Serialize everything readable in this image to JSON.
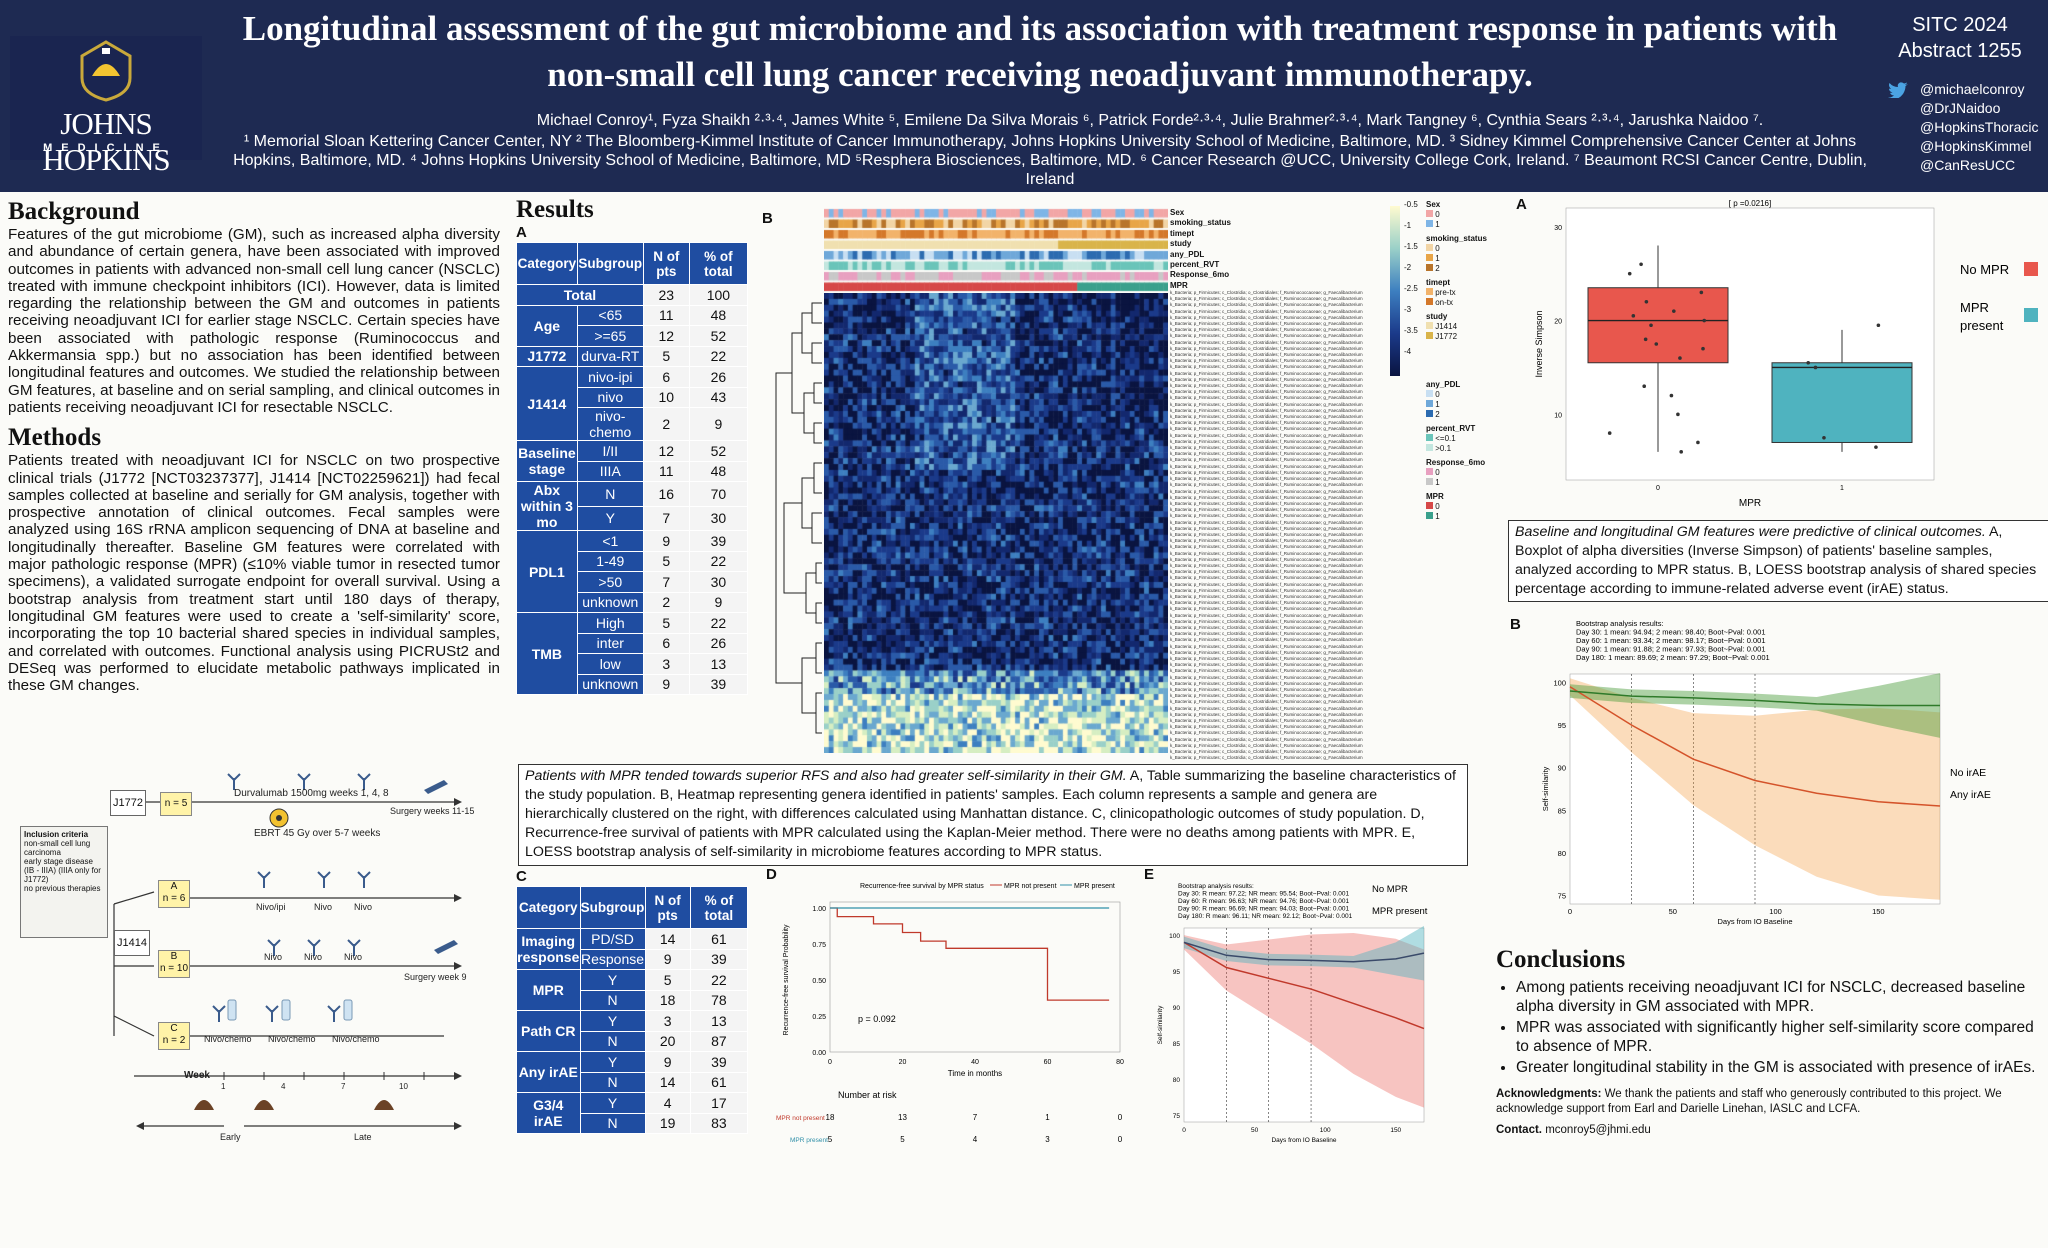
{
  "header": {
    "title": "Longitudinal assessment of the gut microbiome and its association with treatment response in patients with non-small cell lung cancer receiving neoadjuvant immunotherapy.",
    "authors": "Michael Conroy¹, Fyza Shaikh ²·³·⁴, James White ⁵, Emilene Da Silva Morais ⁶, Patrick Forde²·³·⁴, Julie Brahmer²·³·⁴, Mark Tangney ⁶, Cynthia Sears ²·³·⁴, Jarushka Naidoo ⁷.",
    "affil_1": "¹ Memorial Sloan Kettering Cancer Center, NY ² The Bloomberg-Kimmel Institute of Cancer Immunotherapy, Johns Hopkins University School of Medicine, Baltimore, MD. ³ Sidney Kimmel Comprehensive Cancer Center at Johns",
    "affil_2": "Hopkins, Baltimore, MD. ⁴ Johns Hopkins University School of Medicine, Baltimore, MD ⁵Resphera Biosciences, Baltimore, MD. ⁶ Cancer Research @UCC, University College Cork, Ireland. ⁷ Beaumont RCSI Cancer Centre, Dublin, Ireland",
    "conference": "SITC 2024",
    "abstract": "Abstract 1255",
    "logo_text": "JOHNS HOPKINS",
    "logo_sub": "MEDICINE",
    "handles": [
      "@michaelconroy",
      "@DrJNaidoo",
      "@HopkinsThoracic",
      "@HopkinsKimmel",
      "@CanResUCC"
    ]
  },
  "background": {
    "heading": "Background",
    "text": "Features of the gut microbiome (GM), such as increased alpha diversity and abundance of certain genera, have been associated with improved outcomes in patients with advanced non-small cell lung cancer (NSCLC) treated with immune checkpoint inhibitors (ICI). However, data is limited regarding the relationship between the GM and outcomes in patients receiving neoadjuvant ICI for earlier stage NSCLC. Certain species have been associated with pathologic response (Ruminococcus and Akkermansia spp.) but no association has been identified between longitudinal features and outcomes. We studied the relationship between GM features, at baseline and on serial sampling, and clinical outcomes in patients receiving neoadjuvant ICI for resectable NSCLC."
  },
  "methods": {
    "heading": "Methods",
    "text": "Patients treated with neoadjuvant ICI for NSCLC on two prospective clinical trials (J1772 [NCT03237377], J1414 [NCT02259621]) had fecal samples collected at baseline and serially for GM analysis, together with prospective annotation of clinical outcomes. Fecal samples were analyzed using 16S rRNA amplicon sequencing of DNA at baseline and longitudinally thereafter. Baseline GM features were correlated with major pathologic response (MPR) (≤10% viable tumor in resected tumor specimens), a validated surrogate endpoint for overall survival. Using a bootstrap analysis from treatment start until 180 days of therapy, longitudinal GM features were used to create a 'self-similarity' score, incorporating the top 10 bacterial shared species in individual samples, and correlated with outcomes. Functional analysis using PICRUSt2 and DESeq was performed to elucidate metabolic pathways implicated in these GM changes."
  },
  "flow": {
    "j1772": "J1772",
    "n5": "n = 5",
    "durva": "Durvalumab 1500mg weeks 1, 4, 8",
    "ebrt": "EBRT 45 Gy over 5-7 weeks",
    "surgery1": "Surgery weeks 11-15",
    "inclusion_title": "Inclusion criteria",
    "inclusion": [
      "non-small cell lung carcinoma",
      "early stage disease (IB - IIIA) (IIIA only for J1772)",
      "no previous therapies"
    ],
    "j1414": "J1414",
    "armA": "A",
    "nA": "n = 6",
    "armB": "B",
    "nB": "n = 10",
    "armC": "C",
    "nC": "n = 2",
    "nivoipi": "Nivo/ipi",
    "nivo": "Nivo",
    "nivochemo": "Nivo/chemo",
    "surgery2": "Surgery week 9",
    "week": "Week",
    "weeks": [
      "1",
      "4",
      "7",
      "10"
    ],
    "early": "Early",
    "late": "Late"
  },
  "results": {
    "heading": "Results",
    "labelA": "A",
    "labelB": "B",
    "labelC": "C",
    "labelD": "D",
    "labelE": "E"
  },
  "tableA": {
    "headers": [
      "Category",
      "Subgroup",
      "N of pts",
      "% of total"
    ],
    "rows": [
      {
        "cat": "Total",
        "sub": "",
        "n": "23",
        "p": "100",
        "span": 1
      },
      {
        "cat": "Age",
        "sub": "<65",
        "n": "11",
        "p": "48",
        "span": 2
      },
      {
        "cat": "",
        "sub": ">=65",
        "n": "12",
        "p": "52"
      },
      {
        "cat": "J1772",
        "sub": "durva-RT",
        "n": "5",
        "p": "22",
        "span": 1
      },
      {
        "cat": "J1414",
        "sub": "nivo-ipi",
        "n": "6",
        "p": "26",
        "span": 3
      },
      {
        "cat": "",
        "sub": "nivo",
        "n": "10",
        "p": "43"
      },
      {
        "cat": "",
        "sub": "nivo-chemo",
        "n": "2",
        "p": "9"
      },
      {
        "cat": "Baseline stage",
        "sub": "I/II",
        "n": "12",
        "p": "52",
        "span": 2
      },
      {
        "cat": "",
        "sub": "IIIA",
        "n": "11",
        "p": "48"
      },
      {
        "cat": "Abx within 3 mo",
        "sub": "N",
        "n": "16",
        "p": "70",
        "span": 2
      },
      {
        "cat": "",
        "sub": "Y",
        "n": "7",
        "p": "30"
      },
      {
        "cat": "PDL1",
        "sub": "<1",
        "n": "9",
        "p": "39",
        "span": 4
      },
      {
        "cat": "",
        "sub": "1-49",
        "n": "5",
        "p": "22"
      },
      {
        "cat": "",
        "sub": ">50",
        "n": "7",
        "p": "30"
      },
      {
        "cat": "",
        "sub": "unknown",
        "n": "2",
        "p": "9"
      },
      {
        "cat": "TMB",
        "sub": "High",
        "n": "5",
        "p": "22",
        "span": 4
      },
      {
        "cat": "",
        "sub": "inter",
        "n": "6",
        "p": "26"
      },
      {
        "cat": "",
        "sub": "low",
        "n": "3",
        "p": "13"
      },
      {
        "cat": "",
        "sub": "unknown",
        "n": "9",
        "p": "39"
      }
    ]
  },
  "tableC": {
    "headers": [
      "Category",
      "Subgroup",
      "N of pts",
      "% of total"
    ],
    "rows": [
      {
        "cat": "Imaging response",
        "sub": "PD/SD",
        "n": "14",
        "p": "61",
        "span": 2
      },
      {
        "cat": "",
        "sub": "Response",
        "n": "9",
        "p": "39"
      },
      {
        "cat": "MPR",
        "sub": "Y",
        "n": "5",
        "p": "22",
        "span": 2
      },
      {
        "cat": "",
        "sub": "N",
        "n": "18",
        "p": "78"
      },
      {
        "cat": "Path CR",
        "sub": "Y",
        "n": "3",
        "p": "13",
        "span": 2
      },
      {
        "cat": "",
        "sub": "N",
        "n": "20",
        "p": "87"
      },
      {
        "cat": "Any irAE",
        "sub": "Y",
        "n": "9",
        "p": "39",
        "span": 2
      },
      {
        "cat": "",
        "sub": "N",
        "n": "14",
        "p": "61"
      },
      {
        "cat": "G3/4 irAE",
        "sub": "Y",
        "n": "4",
        "p": "17",
        "span": 2
      },
      {
        "cat": "",
        "sub": "N",
        "n": "19",
        "p": "83"
      }
    ]
  },
  "heatmap": {
    "annotations": [
      "Sex",
      "smoking_status",
      "timept",
      "study",
      "any_PDL",
      "percent_RVT",
      "Response_6mo",
      "MPR"
    ],
    "legend": {
      "scale": [
        "-0.5",
        "-1",
        "-1.5",
        "-2",
        "-2.5",
        "-3",
        "-3.5",
        "-4"
      ],
      "sex_title": "Sex",
      "sex": [
        "0",
        "1"
      ],
      "smoking_title": "smoking_status",
      "smoking": [
        "0",
        "1",
        "2"
      ],
      "timept_title": "timept",
      "timept": [
        "pre-tx",
        "on-tx"
      ],
      "study_title": "study",
      "study": [
        "J1414",
        "J1772"
      ],
      "pdl_title": "any_PDL",
      "pdl": [
        "0",
        "1",
        "2"
      ],
      "rvt_title": "percent_RVT",
      "rvt": [
        "<=0.1",
        ">0.1"
      ],
      "resp_title": "Response_6mo",
      "resp": [
        "0",
        "1"
      ],
      "mpr_title": "MPR",
      "mpr": [
        "0",
        "1"
      ]
    },
    "genus_label": "k_Bacteria; p_Firmicutes; c_Clostridia; o_Clostridiales; f_Ruminococcaceae; g_Faecalibacterium"
  },
  "captionB": {
    "italic": "Patients with MPR tended towards superior RFS and also had greater self-similarity in their GM.",
    "text": " A, Table summarizing the baseline characteristics of the study population. B, Heatmap representing genera identified in patients' samples. Each column represents a sample and genera are hierarchically clustered on the right, with differences calculated using Manhattan distance. C, clinicopathologic outcomes of study population. D, Recurrence-free survival of patients with MPR calculated using the Kaplan-Meier method. There were no deaths among patients with MPR. E, LOESS bootstrap analysis of self-similarity in microbiome features according to MPR status."
  },
  "km": {
    "title": "Recurrence-free survival by MPR status",
    "legend_not": "MPR not present",
    "legend_present": "MPR present",
    "ylabel": "Recurrence-free survival Probability",
    "xlabel": "Time in months",
    "pval": "p = 0.092",
    "yticks": [
      "1.00",
      "0.75",
      "0.50",
      "0.25",
      "0.00"
    ],
    "xticks": [
      "0",
      "20",
      "40",
      "60",
      "80"
    ],
    "risk_title": "Number at risk",
    "risk_not": [
      "18",
      "13",
      "7",
      "1",
      "0"
    ],
    "risk_present": [
      "5",
      "5",
      "4",
      "3",
      "0"
    ]
  },
  "loessE": {
    "title": "Bootstrap analysis results:",
    "lines": [
      "Day 30:  R mean: 97.22; NR mean: 95.54; Boot~Pval: 0.001",
      "Day 60:  R mean: 96.63; NR mean: 94.76; Boot~Pval: 0.001",
      "Day 90:  R mean: 96.69; NR mean: 94.03; Boot~Pval: 0.001",
      "Day 180: R mean: 96.11; NR mean: 92.12; Boot~Pval: 0.001"
    ],
    "legend_no": "No MPR",
    "legend_yes": "MPR present",
    "ylabel": "Self-similarity",
    "xlabel": "Days from IO Baseline",
    "yticks": [
      "100",
      "95",
      "90",
      "85",
      "80",
      "75"
    ],
    "xticks": [
      "0",
      "50",
      "100",
      "150"
    ]
  },
  "boxA": {
    "label": "A",
    "pval": "[ p =0.0216]",
    "ylabel": "Inverse Simpson",
    "xlabel": "MPR",
    "yticks": [
      "30",
      "20",
      "10"
    ],
    "xticks": [
      "0",
      "1"
    ],
    "legend_no": "No MPR",
    "legend_yes": "MPR present"
  },
  "rightcap": {
    "italic": "Baseline and longitudinal GM features were predictive of clinical outcomes.",
    "text": " A, Boxplot of alpha diversities (Inverse Simpson) of patients' baseline samples, analyzed according to MPR status. B, LOESS bootstrap analysis of shared species percentage according to immune-related adverse event (irAE) status."
  },
  "loessB": {
    "label": "B",
    "title": "Bootstrap analysis results:",
    "lines": [
      "Day 30:  1 mean: 94.94; 2 mean: 98.40; Boot~Pval: 0.001",
      "Day 60:  1 mean: 93.34; 2 mean: 98.17; Boot~Pval: 0.001",
      "Day 90:  1 mean: 91.88; 2 mean: 97.93; Boot~Pval: 0.001",
      "Day 180: 1 mean: 89.69; 2 mean: 97.29; Boot~Pval: 0.001"
    ],
    "legend_no": "No irAE",
    "legend_yes": "Any irAE",
    "ylabel": "Self-similarity",
    "xlabel": "Days from IO Baseline",
    "yticks": [
      "100",
      "95",
      "90",
      "85",
      "80",
      "75"
    ],
    "xticks": [
      "0",
      "50",
      "100",
      "150"
    ]
  },
  "conclusions": {
    "heading": "Conclusions",
    "items": [
      "Among patients receiving neoadjuvant ICI for NSCLC, decreased baseline alpha diversity in GM associated with MPR.",
      "MPR was associated with significantly higher self-similarity score compared to absence of MPR.",
      "Greater longitudinal stability in the GM is associated with presence of irAEs."
    ],
    "ack_label": "Acknowledgments:",
    "ack": " We thank the patients and staff who generously contributed to this project. We acknowledge support from Earl and Darielle Linehan, IASLC and LCFA.",
    "contact_label": "Contact.",
    "contact": " mconroy5@jhmi.edu"
  },
  "colors": {
    "navy": "#1e2a52",
    "table_blue": "#1f4da1",
    "red": "#e8574d",
    "teal": "#4fb3bf",
    "orange": "#f39a3b",
    "green": "#4a9b3a"
  },
  "chart_data": [
    {
      "type": "line",
      "title": "Recurrence-free survival by MPR status",
      "xlabel": "Time in months",
      "ylabel": "Recurrence-free survival Probability",
      "xlim": [
        0,
        80
      ],
      "ylim": [
        0,
        1
      ],
      "series": [
        {
          "name": "MPR not present",
          "x": [
            0,
            2,
            2,
            12,
            12,
            20,
            20,
            25,
            25,
            32,
            32,
            45,
            45,
            60,
            60,
            77
          ],
          "y": [
            1,
            1,
            0.94,
            0.94,
            0.89,
            0.89,
            0.83,
            0.83,
            0.77,
            0.77,
            0.72,
            0.72,
            0.72,
            0.72,
            0.36,
            0.36
          ]
        },
        {
          "name": "MPR present",
          "x": [
            0,
            77
          ],
          "y": [
            1,
            1
          ]
        }
      ],
      "annotations": [
        "p = 0.092"
      ]
    },
    {
      "type": "line",
      "xlabel": "Days from IO Baseline",
      "ylabel": "Self-similarity",
      "xlim": [
        0,
        170
      ],
      "ylim": [
        74,
        101
      ],
      "series": [
        {
          "name": "No MPR",
          "x": [
            0,
            30,
            60,
            90,
            120,
            150,
            170
          ],
          "y": [
            99,
            95.5,
            94,
            92.5,
            90.5,
            88.5,
            87
          ]
        },
        {
          "name": "MPR present",
          "x": [
            0,
            30,
            60,
            90,
            120,
            150,
            170
          ],
          "y": [
            99,
            97.2,
            96.6,
            96.5,
            96.3,
            96.7,
            97.5
          ]
        }
      ]
    },
    {
      "type": "scatter",
      "title": "[ p =0.0216]",
      "xlabel": "MPR",
      "ylabel": "Inverse Simpson",
      "categories": [
        "0",
        "1"
      ],
      "box": [
        {
          "name": "No MPR",
          "q1": 15.5,
          "median": 20,
          "q3": 23.5,
          "min": 6,
          "max": 28
        },
        {
          "name": "MPR present",
          "q1": 7,
          "median": 15,
          "q3": 15.5,
          "min": 6,
          "max": 19
        }
      ],
      "points_0": [
        26,
        25,
        23,
        22,
        21,
        20.5,
        20,
        19.5,
        18,
        17.5,
        17,
        16,
        13,
        12,
        10,
        8,
        7,
        6
      ],
      "points_1": [
        19.5,
        15.5,
        15,
        7.5,
        6.5
      ]
    },
    {
      "type": "line",
      "xlabel": "Days from IO Baseline",
      "ylabel": "Self-similarity",
      "xlim": [
        0,
        180
      ],
      "ylim": [
        74,
        101
      ],
      "series": [
        {
          "name": "No irAE",
          "x": [
            0,
            30,
            60,
            90,
            120,
            150,
            180
          ],
          "y": [
            99.5,
            95,
            91,
            88.5,
            87,
            86,
            85.5
          ]
        },
        {
          "name": "Any irAE",
          "x": [
            0,
            30,
            60,
            90,
            120,
            150,
            180
          ],
          "y": [
            99,
            98.4,
            98.2,
            97.9,
            97.5,
            97.3,
            97.3
          ]
        }
      ]
    }
  ]
}
